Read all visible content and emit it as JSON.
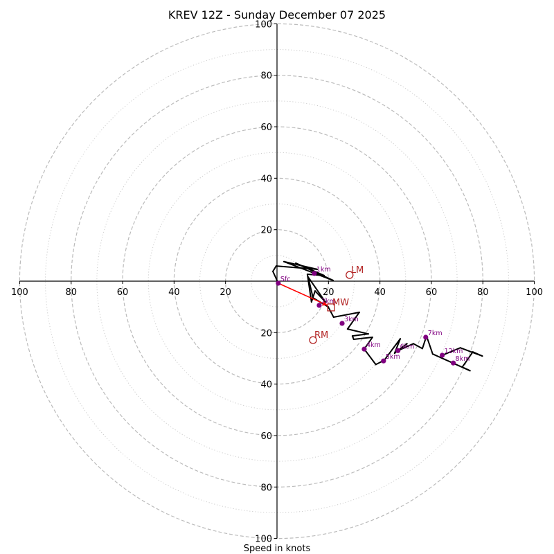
{
  "chart_data": {
    "type": "line",
    "subtype": "hodograph",
    "title": "KREV 12Z - Sunday December 07 2025",
    "xlabel": "Speed in knots",
    "ylabel": "",
    "xlim": [
      -100,
      100
    ],
    "ylim": [
      -100,
      100
    ],
    "grid": true,
    "legend": "none",
    "x_ticks": [
      -100,
      -80,
      -60,
      -40,
      -20,
      20,
      40,
      60,
      80,
      100
    ],
    "x_tick_labels": [
      "100",
      "80",
      "60",
      "40",
      "20",
      "20",
      "40",
      "60",
      "80",
      "100"
    ],
    "y_ticks": [
      100,
      80,
      60,
      40,
      20,
      -20,
      -40,
      -60,
      -80,
      -100
    ],
    "y_tick_labels": [
      "100",
      "80",
      "60",
      "40",
      "20",
      "20",
      "40",
      "60",
      "80",
      "100"
    ],
    "rings": {
      "major_knots": [
        20,
        40,
        60,
        80,
        100
      ],
      "minor_knots": [
        10,
        30,
        50,
        70,
        90
      ]
    },
    "series": [
      {
        "name": "wind-profile",
        "u": [
          0.5,
          -1.6,
          -0.3,
          15.6,
          2.7,
          21.8,
          7.3,
          18.3,
          11.8,
          13.4,
          14.8,
          18.8,
          12.1,
          14.0,
          19.9,
          22.0,
          32.0,
          27.4,
          35.5,
          29.3,
          29.8,
          37.1,
          33.9,
          38.4,
          41.7,
          47.9,
          45.7,
          50.5,
          47.0,
          53.0,
          56.5,
          58.1,
          60.5,
          75.0,
          72.0,
          76.1,
          79.8,
          71.2,
          64.2
        ],
        "v": [
          -0.8,
          3.8,
          5.9,
          4.6,
          7.6,
          0.3,
          7.0,
          2.2,
          2.7,
          -8.1,
          -3.8,
          -8.1,
          1.6,
          -6.5,
          -10.0,
          -14.0,
          -12.1,
          -18.6,
          -20.5,
          -21.3,
          -22.6,
          -21.8,
          -26.4,
          -32.4,
          -30.7,
          -22.4,
          -28.0,
          -24.3,
          -27.0,
          -24.3,
          -26.2,
          -21.3,
          -28.3,
          -34.8,
          -33.4,
          -27.5,
          -29.1,
          -25.9,
          -28.8
        ]
      }
    ],
    "height_markers": [
      {
        "label": "Sfc",
        "u": 0.5,
        "v": -0.8
      },
      {
        "label": "1km",
        "u": 14.5,
        "v": 3.0
      },
      {
        "label": "2km",
        "u": 16.4,
        "v": -9.4
      },
      {
        "label": "3km",
        "u": 25.3,
        "v": -16.4
      },
      {
        "label": "4km",
        "u": 33.9,
        "v": -26.4
      },
      {
        "label": "5km",
        "u": 41.4,
        "v": -31.0
      },
      {
        "label": "6km",
        "u": 47.0,
        "v": -27.0
      },
      {
        "label": "7km",
        "u": 57.8,
        "v": -21.8
      },
      {
        "label": "8km",
        "u": 68.5,
        "v": -31.8
      },
      {
        "label": "12km",
        "u": 64.2,
        "v": -28.8
      }
    ],
    "storm_motions": [
      {
        "label": "LM",
        "u": 28.2,
        "v": 2.4,
        "marker": "circle"
      },
      {
        "label": "RM",
        "u": 14.0,
        "v": -22.9,
        "marker": "circle"
      },
      {
        "label": "MW",
        "u": 21.0,
        "v": -10.2,
        "marker": "square"
      }
    ],
    "mean_wind_vector": {
      "from_u": 0.5,
      "from_v": -0.8,
      "to_u": 19.6,
      "to_v": -9.4
    },
    "colors": {
      "profile": "#000000",
      "height_marker": "#800080",
      "storm_motion": "#b22222",
      "mean_wind_vector": "#ff0000",
      "major_ring": "#bbbbbb",
      "minor_ring": "#cccccc",
      "axis": "#000000"
    }
  }
}
